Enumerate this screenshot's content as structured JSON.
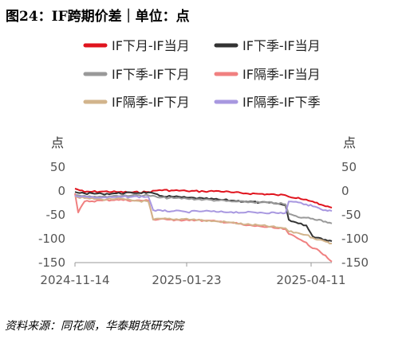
{
  "title": "图24：IF跨期价差｜单位：点",
  "source": "资料来源：同花顺，华泰期货研究院",
  "chart_data": {
    "type": "line",
    "left_unit": "点",
    "right_unit": "点",
    "ylim": [
      -150,
      50
    ],
    "yticks": [
      50,
      0,
      -50,
      -100,
      -150
    ],
    "xlim": [
      "2024-11-14",
      "2025-04-24"
    ],
    "xticks": [
      "2024-11-14",
      "2025-01-23",
      "2025-04-11"
    ],
    "grid": false,
    "legend_position": "top",
    "series": [
      {
        "name": "IF下月-IF当月",
        "color": "#e0141e",
        "points": [
          [
            "2024-11-14",
            5
          ],
          [
            "2024-11-20",
            -2
          ],
          [
            "2024-12-01",
            -1
          ],
          [
            "2024-12-10",
            -2
          ],
          [
            "2024-12-20",
            -3
          ],
          [
            "2024-12-30",
            -2
          ],
          [
            "2025-01-06",
            2
          ],
          [
            "2025-01-15",
            1
          ],
          [
            "2025-01-23",
            0
          ],
          [
            "2025-02-03",
            -1
          ],
          [
            "2025-02-12",
            0
          ],
          [
            "2025-02-20",
            -3
          ],
          [
            "2025-03-01",
            -5
          ],
          [
            "2025-03-10",
            -6
          ],
          [
            "2025-03-20",
            -8
          ],
          [
            "2025-03-26",
            -9
          ],
          [
            "2025-03-28",
            -12
          ],
          [
            "2025-04-03",
            -14
          ],
          [
            "2025-04-08",
            -18
          ],
          [
            "2025-04-12",
            -22
          ],
          [
            "2025-04-16",
            -28
          ],
          [
            "2025-04-20",
            -32
          ],
          [
            "2025-04-24",
            -35
          ]
        ]
      },
      {
        "name": "IF下季-IF当月",
        "color": "#333333",
        "points": [
          [
            "2024-11-14",
            -2
          ],
          [
            "2024-11-20",
            -5
          ],
          [
            "2024-12-01",
            -6
          ],
          [
            "2024-12-10",
            -5
          ],
          [
            "2024-12-20",
            -4
          ],
          [
            "2024-12-30",
            -3
          ],
          [
            "2025-01-06",
            -10
          ],
          [
            "2025-01-15",
            -12
          ],
          [
            "2025-01-23",
            -14
          ],
          [
            "2025-02-03",
            -16
          ],
          [
            "2025-02-12",
            -18
          ],
          [
            "2025-02-20",
            -20
          ],
          [
            "2025-03-01",
            -22
          ],
          [
            "2025-03-10",
            -24
          ],
          [
            "2025-03-20",
            -26
          ],
          [
            "2025-03-26",
            -30
          ],
          [
            "2025-03-28",
            -60
          ],
          [
            "2025-04-03",
            -68
          ],
          [
            "2025-04-08",
            -72
          ],
          [
            "2025-04-12",
            -95
          ],
          [
            "2025-04-16",
            -98
          ],
          [
            "2025-04-20",
            -102
          ],
          [
            "2025-04-24",
            -105
          ]
        ]
      },
      {
        "name": "IF下季-IF下月",
        "color": "#999999",
        "points": [
          [
            "2024-11-14",
            -8
          ],
          [
            "2024-11-20",
            -10
          ],
          [
            "2024-12-01",
            -12
          ],
          [
            "2024-12-10",
            -10
          ],
          [
            "2024-12-20",
            -9
          ],
          [
            "2024-12-30",
            -9
          ],
          [
            "2025-01-06",
            -14
          ],
          [
            "2025-01-15",
            -15
          ],
          [
            "2025-01-23",
            -16
          ],
          [
            "2025-02-03",
            -18
          ],
          [
            "2025-02-12",
            -20
          ],
          [
            "2025-02-20",
            -22
          ],
          [
            "2025-03-01",
            -23
          ],
          [
            "2025-03-10",
            -24
          ],
          [
            "2025-03-20",
            -25
          ],
          [
            "2025-03-26",
            -28
          ],
          [
            "2025-03-28",
            -48
          ],
          [
            "2025-04-03",
            -55
          ],
          [
            "2025-04-08",
            -56
          ],
          [
            "2025-04-12",
            -58
          ],
          [
            "2025-04-16",
            -60
          ],
          [
            "2025-04-20",
            -64
          ],
          [
            "2025-04-24",
            -68
          ]
        ]
      },
      {
        "name": "IF隔季-IF当月",
        "color": "#f08080",
        "points": [
          [
            "2024-11-14",
            -5
          ],
          [
            "2024-11-16",
            -45
          ],
          [
            "2024-11-20",
            -22
          ],
          [
            "2024-12-01",
            -20
          ],
          [
            "2024-12-10",
            -18
          ],
          [
            "2024-12-20",
            -20
          ],
          [
            "2024-12-30",
            -20
          ],
          [
            "2025-01-02",
            -60
          ],
          [
            "2025-01-08",
            -58
          ],
          [
            "2025-01-15",
            -62
          ],
          [
            "2025-01-23",
            -60
          ],
          [
            "2025-02-03",
            -62
          ],
          [
            "2025-02-12",
            -64
          ],
          [
            "2025-02-20",
            -66
          ],
          [
            "2025-03-01",
            -72
          ],
          [
            "2025-03-10",
            -74
          ],
          [
            "2025-03-20",
            -78
          ],
          [
            "2025-03-26",
            -80
          ],
          [
            "2025-03-28",
            -90
          ],
          [
            "2025-04-03",
            -100
          ],
          [
            "2025-04-08",
            -108
          ],
          [
            "2025-04-12",
            -120
          ],
          [
            "2025-04-16",
            -125
          ],
          [
            "2025-04-20",
            -135
          ],
          [
            "2025-04-24",
            -148
          ]
        ]
      },
      {
        "name": "IF隔季-IF下月",
        "color": "#d2b48c",
        "points": [
          [
            "2024-11-14",
            -12
          ],
          [
            "2024-11-20",
            -15
          ],
          [
            "2024-12-01",
            -18
          ],
          [
            "2024-12-10",
            -16
          ],
          [
            "2024-12-20",
            -20
          ],
          [
            "2024-12-30",
            -22
          ],
          [
            "2025-01-02",
            -60
          ],
          [
            "2025-01-08",
            -58
          ],
          [
            "2025-01-15",
            -60
          ],
          [
            "2025-01-23",
            -58
          ],
          [
            "2025-02-03",
            -62
          ],
          [
            "2025-02-12",
            -64
          ],
          [
            "2025-02-20",
            -66
          ],
          [
            "2025-03-01",
            -70
          ],
          [
            "2025-03-10",
            -72
          ],
          [
            "2025-03-20",
            -76
          ],
          [
            "2025-03-26",
            -78
          ],
          [
            "2025-03-28",
            -85
          ],
          [
            "2025-04-03",
            -88
          ],
          [
            "2025-04-08",
            -92
          ],
          [
            "2025-04-12",
            -98
          ],
          [
            "2025-04-16",
            -102
          ],
          [
            "2025-04-20",
            -106
          ],
          [
            "2025-04-24",
            -110
          ]
        ]
      },
      {
        "name": "IF隔季-IF下季",
        "color": "#a898e0",
        "points": [
          [
            "2024-11-14",
            -10
          ],
          [
            "2024-11-20",
            -12
          ],
          [
            "2024-12-01",
            -14
          ],
          [
            "2024-12-10",
            -13
          ],
          [
            "2024-12-20",
            -12
          ],
          [
            "2024-12-30",
            -12
          ],
          [
            "2025-01-02",
            -40
          ],
          [
            "2025-01-08",
            -42
          ],
          [
            "2025-01-15",
            -42
          ],
          [
            "2025-01-23",
            -44
          ],
          [
            "2025-02-03",
            -42
          ],
          [
            "2025-02-12",
            -44
          ],
          [
            "2025-02-20",
            -44
          ],
          [
            "2025-03-01",
            -45
          ],
          [
            "2025-03-10",
            -45
          ],
          [
            "2025-03-20",
            -46
          ],
          [
            "2025-03-26",
            -46
          ],
          [
            "2025-03-28",
            -22
          ],
          [
            "2025-04-03",
            -24
          ],
          [
            "2025-04-08",
            -28
          ],
          [
            "2025-04-12",
            -32
          ],
          [
            "2025-04-16",
            -36
          ],
          [
            "2025-04-20",
            -40
          ],
          [
            "2025-04-24",
            -42
          ]
        ]
      }
    ]
  }
}
